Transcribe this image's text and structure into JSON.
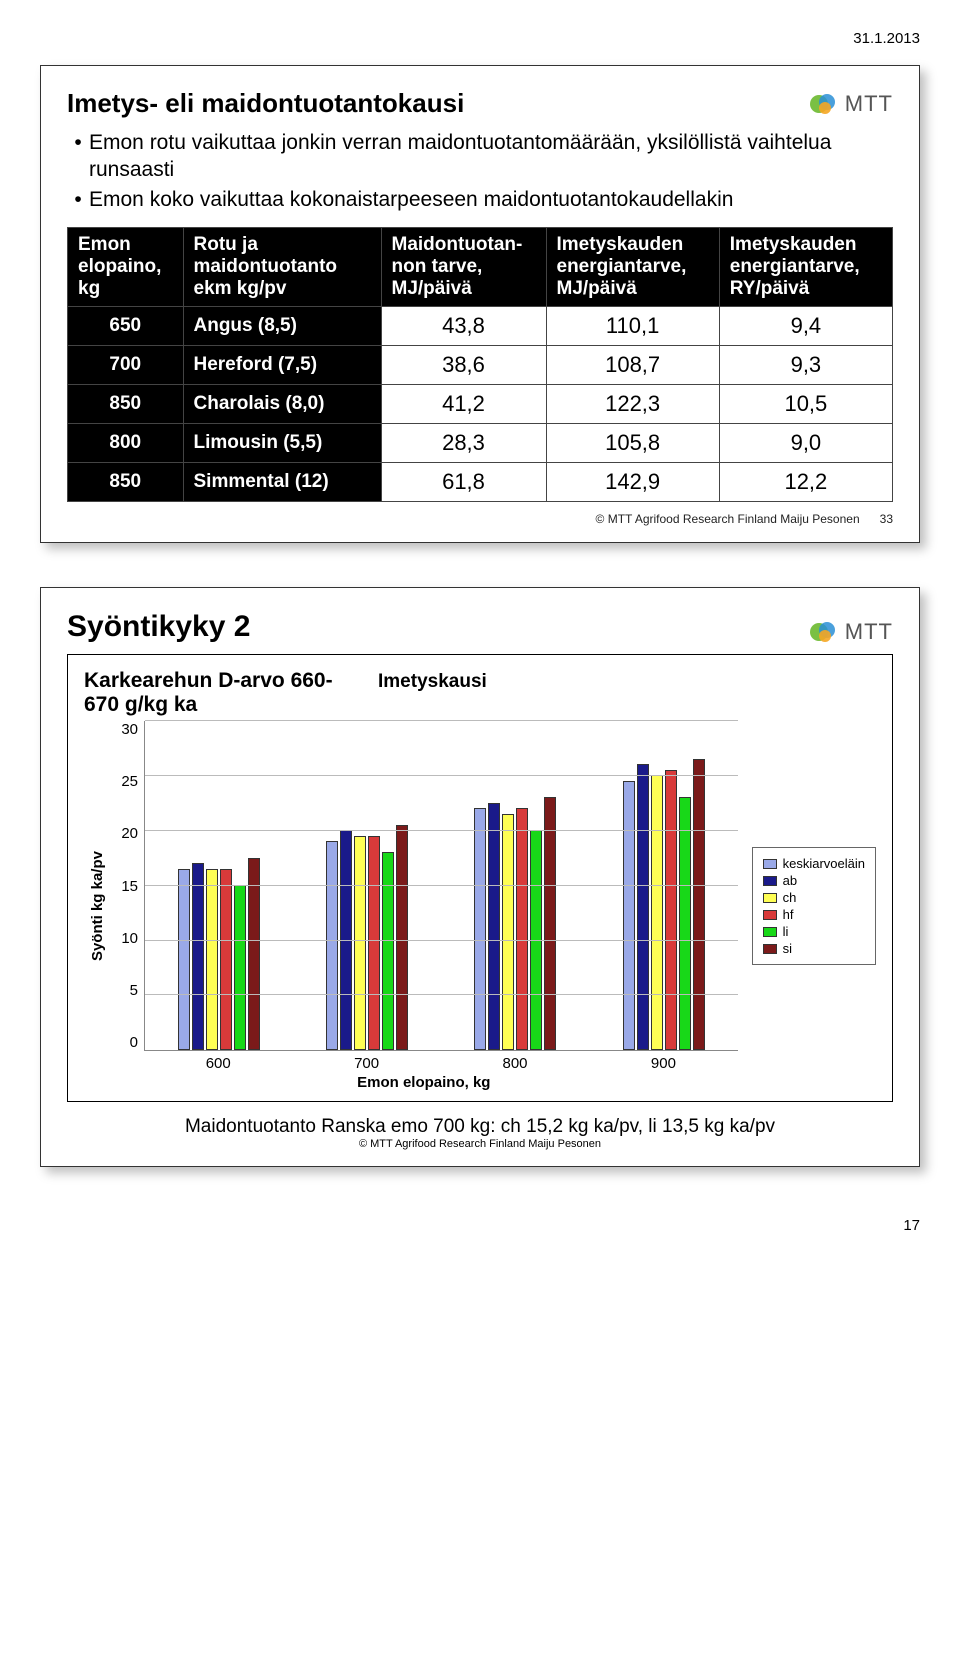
{
  "date_header": "31.1.2013",
  "card1": {
    "title": "Imetys- eli maidontuotantokausi",
    "bullets": [
      "Emon rotu vaikuttaa jonkin verran maidontuotantomäärään, yksilöllistä vaihtelua runsaasti",
      "Emon koko vaikuttaa kokonaistarpeeseen maidontuotantokaudellakin"
    ],
    "table": {
      "columns": [
        "Emon elopaino, kg",
        "Rotu ja maidontuotanto ekm kg/pv",
        "Maidontuotan-non tarve, MJ/päivä",
        "Imetyskauden energiantarve, MJ/päivä",
        "Imetyskauden energiantarve, RY/päivä"
      ],
      "rows": [
        {
          "weight": "650",
          "rotu": "Angus (8,5)",
          "v": [
            "43,8",
            "110,1",
            "9,4"
          ]
        },
        {
          "weight": "700",
          "rotu": "Hereford (7,5)",
          "v": [
            "38,6",
            "108,7",
            "9,3"
          ]
        },
        {
          "weight": "850",
          "rotu": "Charolais (8,0)",
          "v": [
            "41,2",
            "122,3",
            "10,5"
          ]
        },
        {
          "weight": "800",
          "rotu": "Limousin (5,5)",
          "v": [
            "28,3",
            "105,8",
            "9,0"
          ]
        },
        {
          "weight": "850",
          "rotu": "Simmental (12)",
          "v": [
            "61,8",
            "142,9",
            "12,2"
          ]
        }
      ]
    },
    "footer": "© MTT Agrifood Research Finland Maiju Pesonen",
    "footer_num": "33"
  },
  "card2": {
    "title": "Syöntikyky 2",
    "chart": {
      "title_left": "Karkearehun D-arvo 660-670 g/kg ka",
      "title_right": "Imetyskausi",
      "ylabel": "Syönti kg ka/pv",
      "xlabel": "Emon elopaino, kg",
      "ymax": 30,
      "ytick_step": 5,
      "yticks": [
        "30",
        "25",
        "20",
        "15",
        "10",
        "5",
        "0"
      ],
      "categories": [
        "600",
        "700",
        "800",
        "900"
      ],
      "series": [
        {
          "name": "keskiarvoeläin",
          "color": "#9aa9e8"
        },
        {
          "name": "ab",
          "color": "#1a1a8a"
        },
        {
          "name": "ch",
          "color": "#ffff55"
        },
        {
          "name": "hf",
          "color": "#d83a3a"
        },
        {
          "name": "li",
          "color": "#18d818"
        },
        {
          "name": "si",
          "color": "#7b1a1a"
        }
      ],
      "data": {
        "600": [
          16.5,
          17.0,
          16.5,
          16.5,
          15.0,
          17.5
        ],
        "700": [
          19.0,
          20.0,
          19.5,
          19.5,
          18.0,
          20.5
        ],
        "800": [
          22.0,
          22.5,
          21.5,
          22.0,
          20.0,
          23.0
        ],
        "900": [
          24.5,
          26.0,
          25.0,
          25.5,
          23.0,
          26.5
        ]
      },
      "grid_color": "#bbbbbb"
    },
    "note": "Maidontuotanto Ranska emo 700 kg: ch 15,2 kg ka/pv, li 13,5 kg ka/pv",
    "small_copy": "© MTT Agrifood Research Finland Maiju Pesonen"
  },
  "logo_text": "MTT",
  "page_number": "17"
}
